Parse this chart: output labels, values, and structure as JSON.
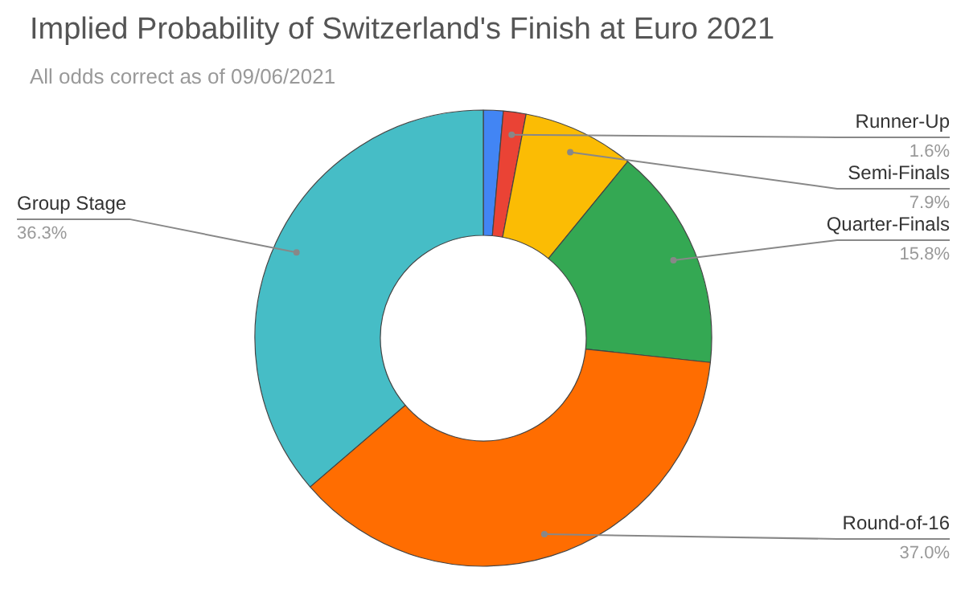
{
  "chart_data": {
    "type": "donut",
    "title": "Implied Probability of Switzerland's Finish at Euro 2021",
    "subtitle": "All odds correct as of 09/06/2021",
    "categories": [
      null,
      "Runner-Up",
      "Semi-Finals",
      "Quarter-Finals",
      "Round-of-16",
      "Group Stage"
    ],
    "values": [
      1.4,
      1.6,
      7.9,
      15.8,
      37.0,
      36.3
    ],
    "value_labels": [
      null,
      "1.6%",
      "7.9%",
      "15.8%",
      "37.0%",
      "36.3%"
    ],
    "colors": [
      "#4285f4",
      "#ea4335",
      "#fbbc04",
      "#34a853",
      "#ff6d01",
      "#46bdc6"
    ]
  }
}
